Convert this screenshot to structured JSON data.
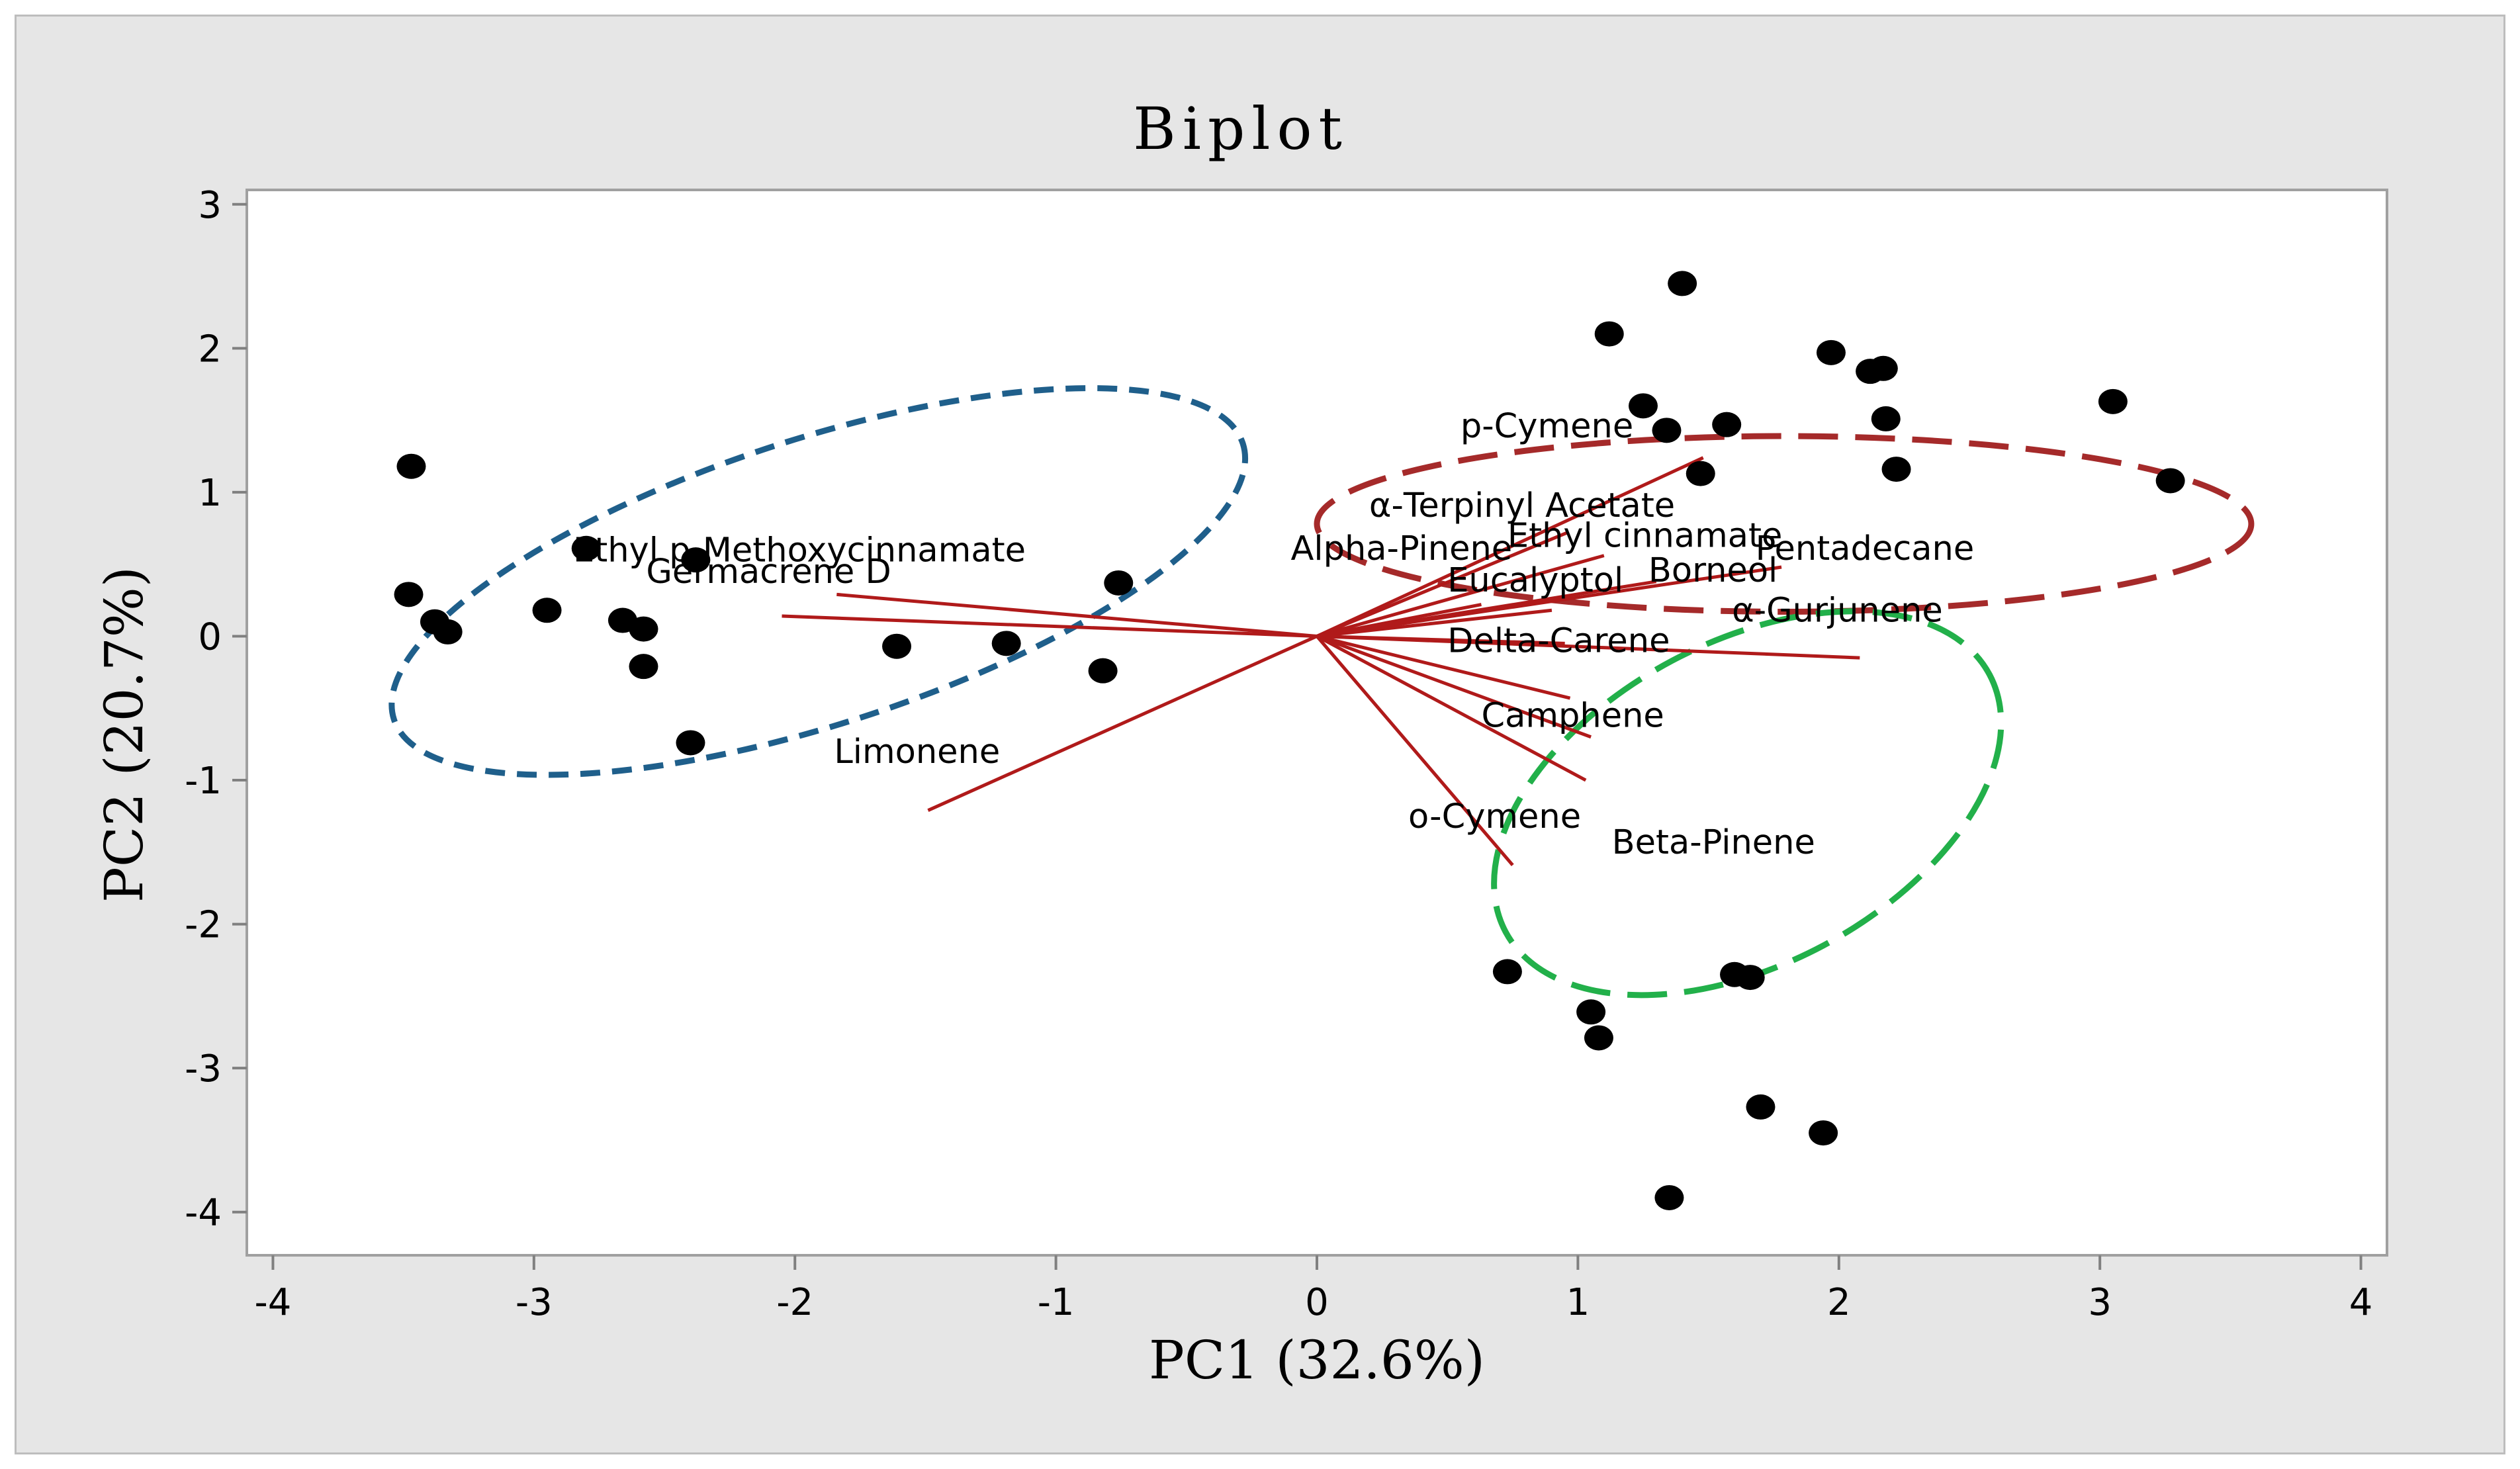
{
  "chart_data": {
    "type": "scatter",
    "title": "Biplot",
    "xlabel": "PC1 (32.6%)",
    "ylabel": "PC2 (20.7%)",
    "xlim": [
      -4.1,
      4.1
    ],
    "ylim": [
      -4.3,
      3.1
    ],
    "xticks": [
      -4,
      -3,
      -2,
      -1,
      0,
      1,
      2,
      3,
      4
    ],
    "yticks": [
      -4,
      -3,
      -2,
      -1,
      0,
      1,
      2,
      3
    ],
    "grid": false,
    "colors": {
      "points": "#000000",
      "vectors": "#b01a1a",
      "ellipse_blue": "#1f5f8b",
      "ellipse_red": "#a52a2a",
      "ellipse_green": "#22b04a",
      "plot_bg": "#ffffff",
      "frame_bg": "#e6e6e6"
    },
    "points": [
      {
        "x": -3.47,
        "y": 1.18
      },
      {
        "x": -3.48,
        "y": 0.29
      },
      {
        "x": -3.38,
        "y": 0.1
      },
      {
        "x": -3.33,
        "y": 0.03
      },
      {
        "x": -2.95,
        "y": 0.18
      },
      {
        "x": -2.8,
        "y": 0.61
      },
      {
        "x": -2.66,
        "y": 0.11
      },
      {
        "x": -2.58,
        "y": 0.05
      },
      {
        "x": -2.58,
        "y": -0.21
      },
      {
        "x": -2.38,
        "y": 0.53
      },
      {
        "x": -2.4,
        "y": -0.74
      },
      {
        "x": -1.61,
        "y": -0.07
      },
      {
        "x": -1.19,
        "y": -0.05
      },
      {
        "x": -0.82,
        "y": -0.24
      },
      {
        "x": -0.76,
        "y": 0.37
      },
      {
        "x": 1.12,
        "y": 2.1
      },
      {
        "x": 1.4,
        "y": 2.45
      },
      {
        "x": 1.25,
        "y": 1.6
      },
      {
        "x": 1.34,
        "y": 1.43
      },
      {
        "x": 1.57,
        "y": 1.47
      },
      {
        "x": 1.47,
        "y": 1.13
      },
      {
        "x": 1.97,
        "y": 1.97
      },
      {
        "x": 2.12,
        "y": 1.84
      },
      {
        "x": 2.17,
        "y": 1.86
      },
      {
        "x": 2.18,
        "y": 1.51
      },
      {
        "x": 2.22,
        "y": 1.16
      },
      {
        "x": 3.05,
        "y": 1.63
      },
      {
        "x": 3.27,
        "y": 1.08
      },
      {
        "x": 0.73,
        "y": -2.33
      },
      {
        "x": 1.05,
        "y": -2.61
      },
      {
        "x": 1.08,
        "y": -2.79
      },
      {
        "x": 1.6,
        "y": -2.35
      },
      {
        "x": 1.66,
        "y": -2.37
      },
      {
        "x": 1.7,
        "y": -3.27
      },
      {
        "x": 1.94,
        "y": -3.45
      },
      {
        "x": 1.35,
        "y": -3.9
      }
    ],
    "vectors": [
      {
        "name": "Ethyl p-Methoxycinnamate",
        "x": -2.05,
        "y": 0.14,
        "lx": -2.85,
        "ly": 0.52
      },
      {
        "name": "Germacrene D",
        "x": -1.84,
        "y": 0.29,
        "lx": -2.57,
        "ly": 0.37
      },
      {
        "name": "Limonene",
        "x": -1.49,
        "y": -1.21,
        "lx": -1.85,
        "ly": -0.88
      },
      {
        "name": "p-Cymene",
        "x": 1.48,
        "y": 1.24,
        "lx": 0.55,
        "ly": 1.38
      },
      {
        "name": "α-Terpinyl Acetate",
        "x": 0.96,
        "y": 0.72,
        "lx": 0.2,
        "ly": 0.83
      },
      {
        "name": "Ethyl cinnamate",
        "x": 1.1,
        "y": 0.56,
        "lx": 0.73,
        "ly": 0.62
      },
      {
        "name": "Alpha-Pinene",
        "x": 0.63,
        "y": 0.22,
        "lx": -0.1,
        "ly": 0.53
      },
      {
        "name": "Pentadecane",
        "x": 1.78,
        "y": 0.48,
        "lx": 1.68,
        "ly": 0.53
      },
      {
        "name": "Borneol",
        "x": 1.3,
        "y": 0.38,
        "lx": 1.27,
        "ly": 0.38
      },
      {
        "name": "Eucalyptol",
        "x": 0.9,
        "y": 0.18,
        "lx": 0.5,
        "ly": 0.31
      },
      {
        "name": "α-Gurjunene",
        "x": 2.08,
        "y": -0.15,
        "lx": 1.59,
        "ly": 0.1
      },
      {
        "name": "Delta-Carene",
        "x": 0.95,
        "y": -0.05,
        "lx": 0.5,
        "ly": -0.11
      },
      {
        "name": "Camphene",
        "x": 0.97,
        "y": -0.43,
        "lx": 0.63,
        "ly": -0.63
      },
      {
        "name": "o-Cymene",
        "x": 1.05,
        "y": -0.7,
        "lx": 0.35,
        "ly": -1.33
      },
      {
        "name": "Beta-Pinene",
        "x": 1.03,
        "y": -1.0,
        "lx": 1.13,
        "ly": -1.51
      },
      {
        "name": "Beta-Pinene-dir",
        "x": 0.75,
        "y": -1.59,
        "lx": null,
        "ly": null
      }
    ],
    "ellipses": [
      {
        "group": "blue",
        "cx": -1.91,
        "cy": 0.38,
        "rx": 1.71,
        "ry": 0.99,
        "angle_deg": -18,
        "dash": "short"
      },
      {
        "group": "red",
        "cx": 1.79,
        "cy": 0.78,
        "rx": 1.79,
        "ry": 0.61,
        "angle_deg": 0,
        "dash": "long"
      },
      {
        "group": "green",
        "cx": 1.65,
        "cy": -1.16,
        "rx": 1.05,
        "ry": 1.12,
        "angle_deg": -28,
        "dash": "long"
      }
    ]
  }
}
